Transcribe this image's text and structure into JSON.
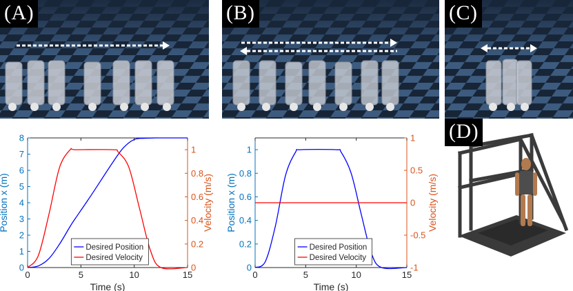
{
  "panels": {
    "a": {
      "label": "(A)"
    },
    "b": {
      "label": "(B)"
    },
    "c": {
      "label": "(C)"
    },
    "d": {
      "label": "(D)"
    }
  },
  "colors": {
    "position": "#0000ff",
    "velocity": "#ff0000",
    "left_axis": "#0072bd",
    "right_axis": "#d95319",
    "floor_dark": "#172537",
    "floor_light": "#3c5b7f"
  },
  "chart_data": [
    {
      "id": "A",
      "type": "line",
      "xlabel": "Time (s)",
      "ylabel_left": "Position x (m)",
      "ylabel_right": "Velocity (m/s)",
      "xlim": [
        0,
        15
      ],
      "ylim_left": [
        0,
        8
      ],
      "ylim_right": [
        0,
        1.1
      ],
      "xticks": [
        "0",
        "5",
        "10",
        "15"
      ],
      "yticks_left": [
        "0",
        "1",
        "2",
        "3",
        "4",
        "5",
        "6",
        "7",
        "8"
      ],
      "yticks_right": [
        "0",
        "0.2",
        "0.4",
        "0.6",
        "0.8",
        "1"
      ],
      "legend": "bottom-center",
      "series": [
        {
          "name": "Desired Position",
          "axis": "left",
          "color": "#0000ff",
          "x": [
            0,
            1,
            2,
            3,
            4,
            4.5,
            6,
            8,
            9,
            10,
            11,
            12,
            12.5,
            15
          ],
          "y": [
            0,
            0.1,
            0.55,
            1.45,
            2.55,
            3.05,
            4.5,
            6.5,
            7.4,
            7.9,
            7.98,
            8,
            8,
            8
          ]
        },
        {
          "name": "Desired Velocity",
          "axis": "right",
          "color": "#ff0000",
          "x": [
            0,
            1,
            2,
            3,
            4,
            4.5,
            8,
            8.5,
            9.5,
            10.5,
            11.5,
            12.5,
            15
          ],
          "y": [
            0,
            0.1,
            0.45,
            0.85,
            1.0,
            1.0,
            1.0,
            0.98,
            0.85,
            0.5,
            0.15,
            0,
            0
          ]
        }
      ]
    },
    {
      "id": "B",
      "type": "line",
      "xlabel": "Time (s)",
      "ylabel_left": "Position x (m)",
      "ylabel_right": "Velocity (m/s)",
      "xlim": [
        0,
        15
      ],
      "ylim_left": [
        0,
        1.1
      ],
      "ylim_right": [
        -1,
        1
      ],
      "xticks": [
        "0",
        "5",
        "10",
        "15"
      ],
      "yticks_left": [
        "0",
        "0.2",
        "0.4",
        "0.6",
        "0.8",
        "1"
      ],
      "yticks_right": [
        "-1",
        "-0.5",
        "0",
        "0.5",
        "1"
      ],
      "legend": "bottom-center",
      "series": [
        {
          "name": "Desired Position",
          "axis": "left",
          "color": "#0000ff",
          "x": [
            0,
            1,
            2,
            3,
            4,
            4.5,
            8,
            8.5,
            9.5,
            10.5,
            11.5,
            12.5,
            15
          ],
          "y": [
            0,
            0.05,
            0.35,
            0.78,
            0.98,
            1.0,
            1.0,
            0.98,
            0.8,
            0.45,
            0.12,
            0,
            0
          ]
        },
        {
          "name": "Desired Velocity",
          "axis": "right",
          "color": "#ff0000",
          "x": [
            0,
            15
          ],
          "y": [
            0,
            0
          ]
        }
      ]
    }
  ]
}
